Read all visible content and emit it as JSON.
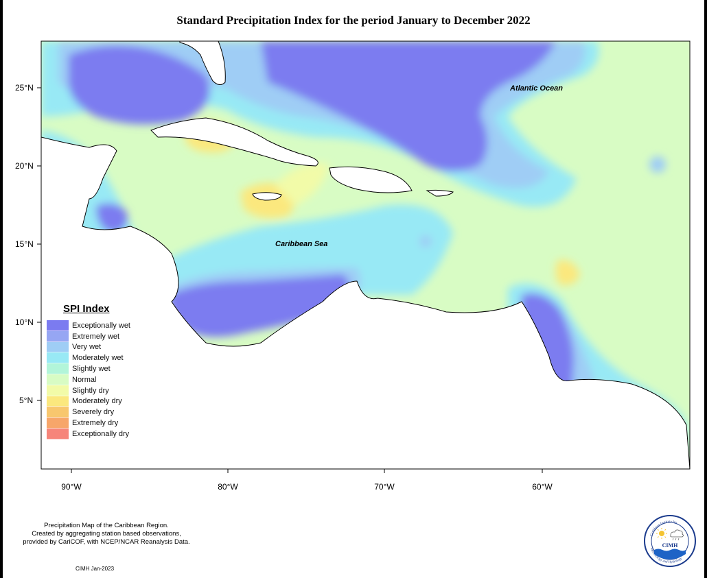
{
  "title": "Standard Precipitation Index for the period January to December 2022",
  "axes": {
    "lat_labels": [
      "25°N",
      "20°N",
      "15°N",
      "10°N",
      "5°N"
    ],
    "lon_labels": [
      "90°W",
      "80°W",
      "70°W",
      "60°W"
    ]
  },
  "map_labels": {
    "atlantic": "Atlantic Ocean",
    "caribbean": "Caribbean Sea"
  },
  "legend": {
    "title": "SPI Index",
    "items": [
      {
        "label": "Exceptionally wet",
        "color": "#7b7bf0"
      },
      {
        "label": "Extremely wet",
        "color": "#96a6f3"
      },
      {
        "label": "Very wet",
        "color": "#9fcdf5"
      },
      {
        "label": "Moderately wet",
        "color": "#98e9f5"
      },
      {
        "label": "Slightly wet",
        "color": "#b2f5d9"
      },
      {
        "label": "Normal",
        "color": "#d8fcc4"
      },
      {
        "label": "Slightly dry",
        "color": "#f2fba8"
      },
      {
        "label": "Moderately dry",
        "color": "#fbe87e"
      },
      {
        "label": "Severely dry",
        "color": "#f8c76e"
      },
      {
        "label": "Extremely dry",
        "color": "#f7a66a"
      },
      {
        "label": "Exceptionally dry",
        "color": "#f6857a"
      }
    ]
  },
  "footer": {
    "line1": "Precipitation Map of the Caribbean Region.",
    "line2": "Created by aggregating station based observations,",
    "line3": "provided by CariCOF, with NCEP/NCAR Reanalysis Data."
  },
  "credit": "CIMH Jan-2023",
  "logo": {
    "text": "CIMH",
    "ring_top": "Caribbean Institute for",
    "ring_bottom": "Meteorology and Hydrology"
  }
}
